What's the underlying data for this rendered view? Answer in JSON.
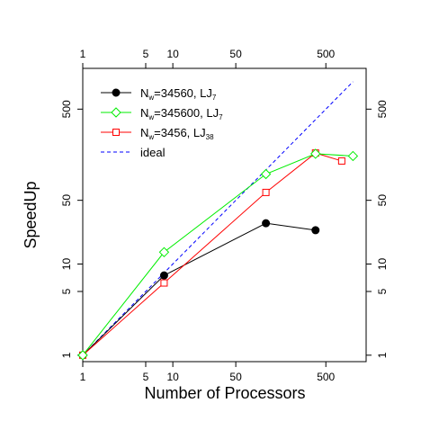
{
  "chart_data": {
    "type": "line",
    "xlabel": "Number of Processors",
    "ylabel": "SpeedUp",
    "x_scale": "log",
    "y_scale": "log",
    "xlim": [
      1,
      1400
    ],
    "ylim": [
      0.85,
      1400
    ],
    "x_ticks": [
      1,
      5,
      10,
      50,
      500
    ],
    "x_tick_labels": [
      "1",
      "5",
      "10",
      "50",
      "500"
    ],
    "y_ticks": [
      1,
      5,
      10,
      50,
      500
    ],
    "y_tick_labels": [
      "1",
      "5",
      "10",
      "50",
      "500"
    ],
    "grid": false,
    "legend_position": "top-left",
    "series": [
      {
        "name": "N_w=34560, LJ_7",
        "label_main": "N",
        "label_sub": "w",
        "label_rest": "=34560, LJ",
        "label_sub2": "7",
        "color": "#000000",
        "marker": "filled-circle",
        "line": "solid",
        "x": [
          1,
          8,
          108,
          384
        ],
        "y": [
          1,
          7.5,
          28,
          23.5
        ]
      },
      {
        "name": "N_w=345600, LJ_7",
        "label_main": "N",
        "label_sub": "w",
        "label_rest": "=345600, LJ",
        "label_sub2": "7",
        "color": "#00ee00",
        "marker": "open-diamond",
        "line": "solid",
        "x": [
          1,
          8,
          108,
          384,
          1000
        ],
        "y": [
          1,
          13.5,
          97,
          162,
          153
        ]
      },
      {
        "name": "N_w=3456, LJ_38",
        "label_main": "N",
        "label_sub": "w",
        "label_rest": "=3456, LJ",
        "label_sub2": "38",
        "color": "#ff0000",
        "marker": "open-square",
        "line": "solid",
        "x": [
          1,
          8,
          108,
          384,
          750
        ],
        "y": [
          1,
          6.2,
          61,
          165,
          135
        ]
      },
      {
        "name": "ideal",
        "label_main": "ideal",
        "label_sub": "",
        "label_rest": "",
        "label_sub2": "",
        "color": "#0000ff",
        "marker": "none",
        "line": "dashed",
        "x": [
          1,
          1000
        ],
        "y": [
          1,
          1000
        ]
      }
    ]
  }
}
